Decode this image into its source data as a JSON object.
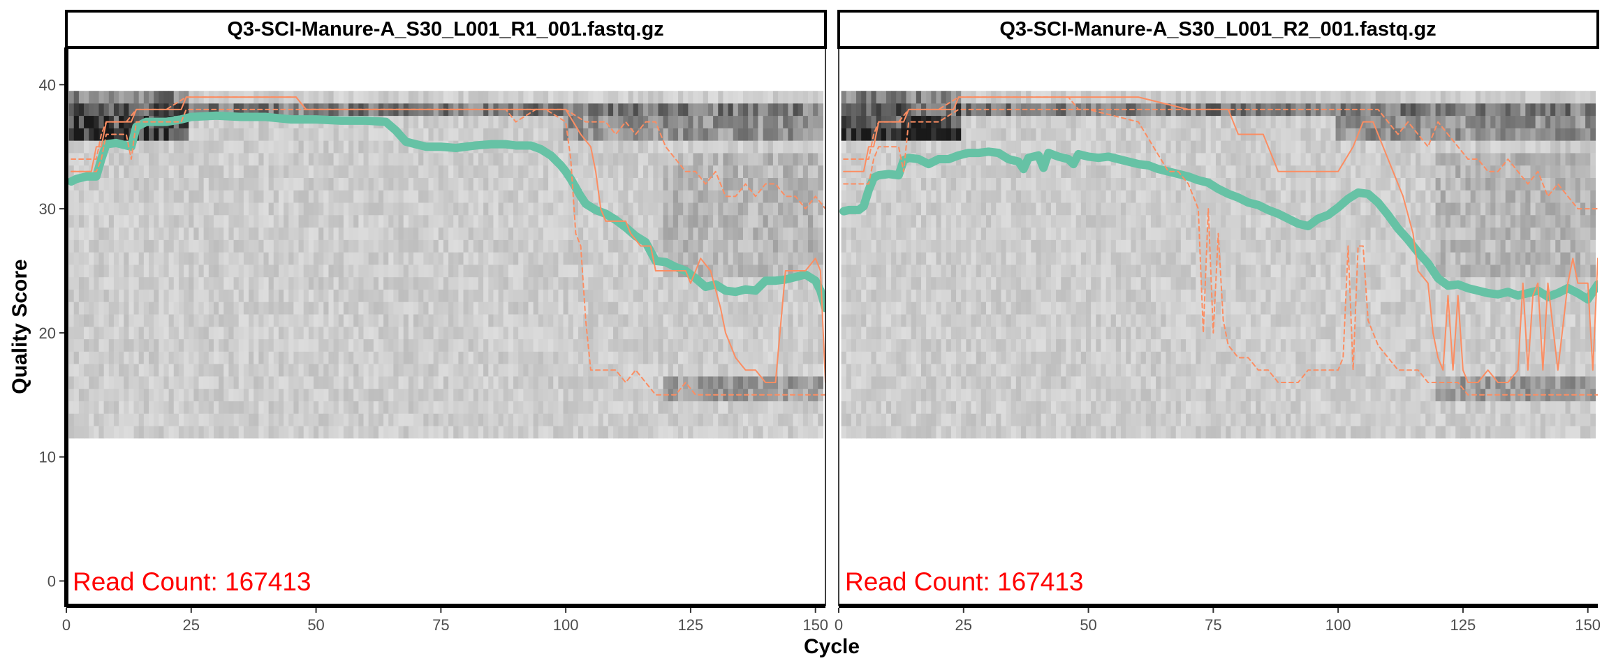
{
  "chart_data": {
    "type": "line",
    "xlabel": "Cycle",
    "ylabel": "Quality Score",
    "xlim": [
      0,
      152
    ],
    "ylim": [
      -2,
      43
    ],
    "xticks": [
      0,
      25,
      50,
      75,
      100,
      125,
      150
    ],
    "yticks": [
      0,
      10,
      20,
      30,
      40
    ],
    "colors": {
      "mean": "#66c2a5",
      "quantile": "#fc8d62",
      "annotation": "#ff0000",
      "heat_light": "#f4f4f4",
      "heat_dark": "#1a1a1a"
    },
    "panels": [
      {
        "title": "Q3-SCI-Manure-A_S30_L001_R1_001.fastq.gz",
        "annotation": "Read Count:  167413",
        "series": [
          {
            "role": "mean",
            "x": [
              1,
              2,
              4,
              6,
              7,
              8,
              10,
              12,
              13,
              14,
              16,
              20,
              23,
              25,
              30,
              35,
              40,
              45,
              50,
              55,
              60,
              64,
              66,
              68,
              70,
              72,
              75,
              78,
              80,
              82,
              85,
              88,
              90,
              93,
              95,
              97,
              99,
              100,
              101,
              102,
              103,
              104,
              106,
              108,
              110,
              112,
              114,
              116,
              118,
              120,
              122,
              124,
              126,
              128,
              130,
              132,
              134,
              136,
              138,
              140,
              142,
              144,
              146,
              148,
              150,
              151,
              152
            ],
            "y": [
              32.2,
              32.4,
              32.6,
              32.6,
              34.0,
              35.2,
              35.3,
              35.1,
              35.0,
              36.6,
              37.0,
              37.0,
              37.2,
              37.4,
              37.5,
              37.4,
              37.4,
              37.2,
              37.2,
              37.1,
              37.1,
              37.0,
              36.3,
              35.4,
              35.2,
              35.0,
              35.0,
              34.9,
              35.0,
              35.1,
              35.2,
              35.2,
              35.1,
              35.1,
              34.8,
              34.3,
              33.5,
              33.0,
              32.4,
              31.7,
              31.0,
              30.4,
              29.9,
              29.6,
              29.1,
              28.5,
              27.8,
              27.3,
              25.8,
              25.7,
              25.3,
              25.0,
              24.4,
              23.7,
              23.9,
              23.4,
              23.3,
              23.5,
              23.4,
              24.2,
              24.2,
              24.3,
              24.5,
              24.7,
              24.2,
              23.4,
              22.0
            ]
          },
          {
            "role": "median",
            "x": [
              1,
              2,
              5,
              6,
              7,
              8,
              10,
              12,
              13,
              14,
              16,
              20,
              23,
              24,
              30,
              40,
              46,
              48,
              100,
              103,
              105,
              106,
              107,
              108,
              112,
              113,
              115,
              117,
              118,
              120,
              124,
              125,
              126,
              127,
              129,
              131,
              132,
              133,
              134,
              136,
              138,
              140,
              141,
              142,
              144,
              146,
              148,
              150,
              151,
              152
            ],
            "y": [
              33,
              33,
              33,
              35,
              35,
              37,
              37,
              37,
              37,
              38,
              38,
              38,
              38,
              39,
              39,
              39,
              39,
              38,
              38,
              36,
              35,
              33,
              30,
              29,
              29,
              28,
              27,
              27,
              25,
              25,
              25,
              24,
              25,
              26,
              25,
              22,
              20,
              19,
              18,
              17,
              17,
              16,
              16,
              16,
              25,
              25,
              25,
              26,
              25,
              16
            ]
          },
          {
            "role": "q25",
            "x": [
              1,
              2,
              5,
              6,
              7,
              8,
              12,
              13,
              14,
              20,
              23,
              24,
              30,
              40,
              50,
              60,
              70,
              80,
              88,
              90,
              94,
              96,
              100,
              101,
              102,
              103,
              104,
              105,
              106,
              108,
              110,
              112,
              114,
              116,
              118,
              120,
              122,
              124,
              126,
              128,
              130,
              132,
              136,
              140,
              144,
              148,
              151,
              152
            ],
            "y": [
              33,
              33,
              33,
              33,
              34,
              36,
              36,
              34,
              37,
              37,
              37,
              38,
              38,
              38,
              38,
              38,
              38,
              38,
              38,
              37,
              38,
              38,
              37,
              34,
              28,
              27,
              21,
              17,
              17,
              17,
              17,
              16,
              17,
              16,
              15,
              15,
              15,
              16,
              15,
              15,
              15,
              15,
              15,
              15,
              15,
              15,
              15,
              15
            ]
          },
          {
            "role": "q75",
            "x": [
              1,
              2,
              6,
              7,
              8,
              12,
              14,
              20,
              24,
              30,
              40,
              46,
              48,
              60,
              70,
              80,
              100,
              104,
              106,
              108,
              110,
              112,
              114,
              116,
              118,
              120,
              122,
              124,
              126,
              128,
              130,
              132,
              134,
              136,
              138,
              140,
              142,
              144,
              146,
              148,
              150,
              152
            ],
            "y": [
              34,
              34,
              34,
              36,
              37,
              37,
              38,
              38,
              39,
              39,
              39,
              39,
              38,
              38,
              38,
              38,
              38,
              37,
              37,
              37,
              36,
              37,
              36,
              37,
              37,
              35,
              34,
              33,
              33,
              32,
              33,
              31,
              31,
              32,
              31,
              32,
              32,
              31,
              31,
              30,
              31,
              30
            ]
          }
        ]
      },
      {
        "title": "Q3-SCI-Manure-A_S30_L001_R2_001.fastq.gz",
        "annotation": "Read Count:  167413",
        "series": [
          {
            "role": "mean",
            "x": [
              1,
              2,
              4,
              5,
              6,
              7,
              8,
              10,
              12,
              13,
              14,
              16,
              18,
              20,
              22,
              24,
              26,
              28,
              30,
              32,
              34,
              36,
              37,
              38,
              40,
              41,
              42,
              44,
              46,
              47,
              48,
              50,
              52,
              54,
              56,
              58,
              60,
              62,
              64,
              66,
              68,
              70,
              72,
              74,
              76,
              78,
              80,
              82,
              84,
              86,
              88,
              90,
              92,
              94,
              96,
              98,
              100,
              102,
              104,
              106,
              108,
              110,
              112,
              114,
              116,
              118,
              120,
              122,
              124,
              126,
              128,
              130,
              132,
              134,
              136,
              138,
              140,
              142,
              144,
              146,
              148,
              150,
              152
            ],
            "y": [
              29.8,
              29.9,
              29.9,
              30.2,
              31.5,
              32.5,
              32.7,
              32.8,
              32.7,
              33.9,
              34.1,
              34.0,
              33.6,
              34.0,
              34.0,
              34.3,
              34.5,
              34.5,
              34.6,
              34.5,
              34.0,
              33.8,
              33.2,
              34.1,
              34.3,
              33.3,
              34.5,
              34.2,
              34.0,
              33.6,
              34.4,
              34.2,
              34.1,
              34.2,
              34.0,
              33.8,
              33.6,
              33.5,
              33.2,
              33.0,
              32.8,
              32.6,
              32.3,
              32.1,
              31.6,
              31.2,
              30.9,
              30.5,
              30.3,
              29.9,
              29.6,
              29.2,
              28.8,
              28.6,
              29.2,
              29.5,
              30.1,
              30.8,
              31.3,
              31.2,
              30.5,
              29.5,
              28.4,
              27.5,
              26.5,
              25.6,
              24.4,
              23.8,
              23.9,
              23.6,
              23.4,
              23.2,
              23.1,
              23.3,
              23.0,
              23.2,
              23.4,
              22.9,
              23.2,
              23.6,
              23.2,
              22.7,
              23.9
            ]
          },
          {
            "role": "median",
            "x": [
              1,
              2,
              5,
              6,
              7,
              8,
              12,
              13,
              14,
              20,
              23,
              24,
              30,
              40,
              50,
              60,
              70,
              75,
              78,
              80,
              85,
              88,
              92,
              96,
              100,
              103,
              105,
              107,
              109,
              111,
              113,
              115,
              116,
              118,
              119,
              120,
              121,
              122,
              123,
              124,
              125,
              126,
              128,
              130,
              132,
              134,
              136,
              137,
              138,
              139,
              140,
              141,
              142,
              144,
              146,
              147,
              148,
              150,
              151,
              152
            ],
            "y": [
              33,
              33,
              33,
              35,
              35,
              37,
              37,
              37,
              38,
              38,
              38,
              39,
              39,
              39,
              39,
              39,
              38,
              38,
              38,
              36,
              36,
              33,
              33,
              33,
              33,
              35,
              37,
              37,
              35,
              33,
              31,
              28,
              25,
              24,
              20,
              18,
              17,
              23,
              17,
              23,
              17,
              16,
              16,
              17,
              16,
              16,
              17,
              24,
              17,
              23,
              24,
              17,
              24,
              17,
              24,
              26,
              24,
              24,
              17,
              26
            ]
          },
          {
            "role": "q25",
            "x": [
              1,
              2,
              5,
              6,
              7,
              8,
              12,
              13,
              14,
              20,
              24,
              30,
              40,
              50,
              60,
              66,
              68,
              70,
              72,
              73,
              74,
              75,
              76,
              77,
              78,
              80,
              82,
              84,
              86,
              88,
              90,
              92,
              94,
              96,
              98,
              100,
              101,
              102,
              103,
              104,
              105,
              106,
              108,
              110,
              112,
              114,
              116,
              118,
              120,
              122,
              124,
              126,
              130,
              136,
              140,
              146,
              150,
              152
            ],
            "y": [
              32,
              32,
              32,
              32,
              34,
              35,
              35,
              33,
              37,
              37,
              38,
              38,
              38,
              38,
              37,
              33,
              33,
              32,
              30,
              20,
              30,
              20,
              28,
              21,
              19,
              18,
              18,
              17,
              17,
              16,
              16,
              16,
              17,
              17,
              17,
              17,
              18,
              27,
              17,
              27,
              27,
              21,
              19,
              18,
              17,
              17,
              17,
              16,
              16,
              16,
              16,
              15,
              15,
              15,
              15,
              15,
              15,
              15
            ]
          },
          {
            "role": "q75",
            "x": [
              1,
              2,
              6,
              7,
              8,
              12,
              14,
              20,
              24,
              30,
              40,
              46,
              48,
              60,
              70,
              80,
              90,
              100,
              108,
              110,
              112,
              114,
              116,
              118,
              120,
              122,
              124,
              126,
              128,
              130,
              132,
              134,
              136,
              138,
              140,
              142,
              144,
              146,
              148,
              150,
              152
            ],
            "y": [
              34,
              34,
              34,
              36,
              37,
              37,
              38,
              38,
              39,
              39,
              39,
              39,
              38,
              38,
              38,
              38,
              38,
              38,
              38,
              37,
              36,
              37,
              36,
              35,
              37,
              36,
              35,
              34,
              34,
              33,
              33,
              34,
              33,
              32,
              33,
              31,
              32,
              31,
              30,
              30,
              30
            ]
          }
        ]
      }
    ]
  }
}
